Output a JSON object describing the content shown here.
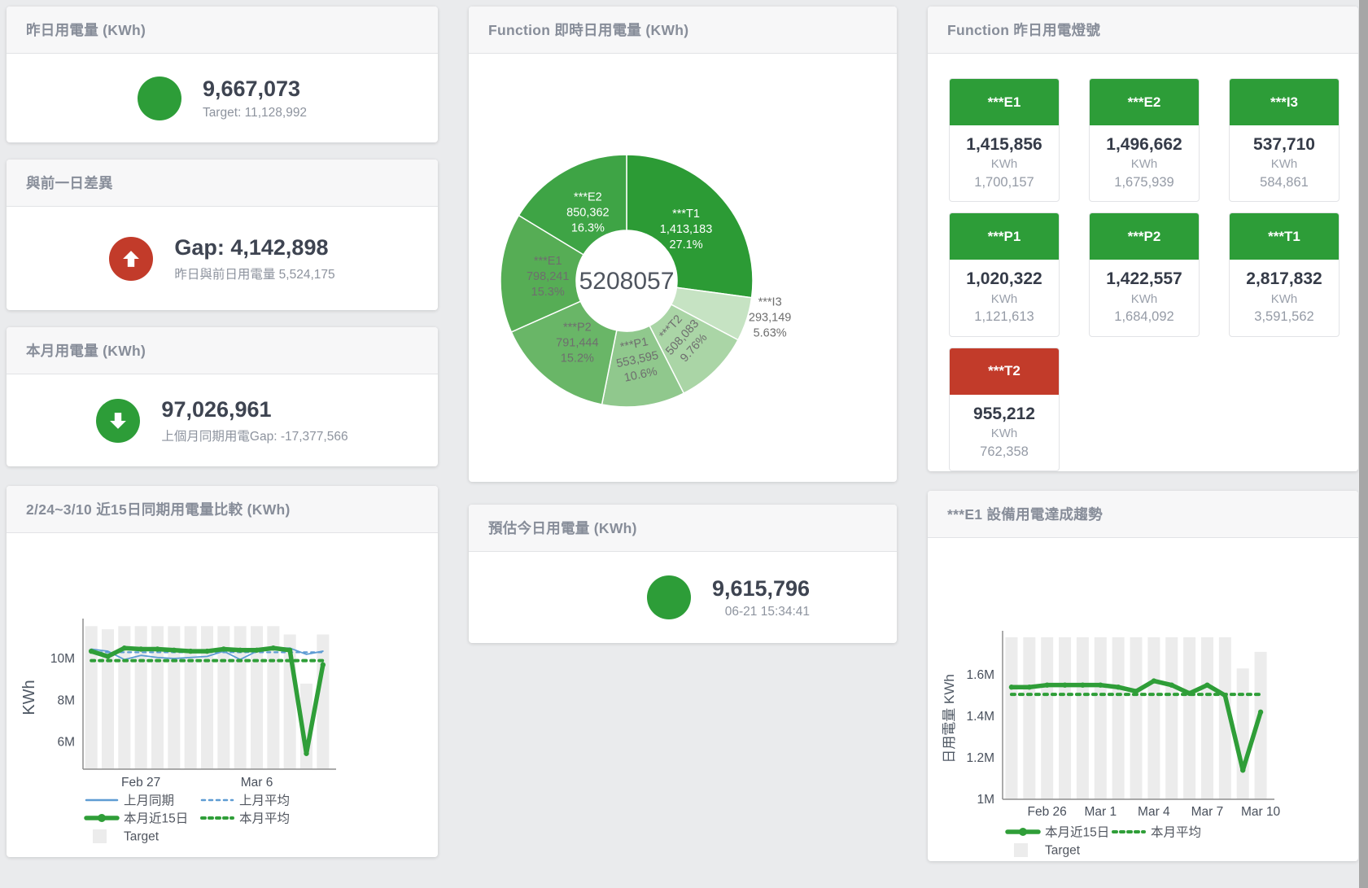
{
  "colors": {
    "page_bg": "#eaebed",
    "green": "#2d9d38",
    "red": "#c23b2a",
    "blue": "#5e9cd3",
    "target_bar": "#ececec",
    "axis": "#8e8e8e",
    "tick_text": "#49505c"
  },
  "panels": {
    "yesterday": {
      "title": "昨日用電量 (KWh)",
      "indicator": "green-circle",
      "value": "9,667,073",
      "sub": "Target: 11,128,992"
    },
    "gap_prev_day": {
      "title": "與前一日差異",
      "indicator": "red-up-arrow",
      "value": "Gap: 4,142,898",
      "sub": "昨日與前日用電量 5,524,175"
    },
    "month": {
      "title": "本月用電量 (KWh)",
      "indicator": "green-down-arrow",
      "value": "97,026,961",
      "sub": "上個月同期用電Gap: -17,377,566"
    },
    "compare15": {
      "title": "2/24~3/10 近15日同期用電量比較 (KWh)"
    },
    "donut": {
      "title": "Function 即時日用電量 (KWh)"
    },
    "today_est": {
      "title": "預估今日用電量 (KWh)",
      "indicator": "green-circle",
      "value": "9,615,796",
      "sub": "06-21 15:34:41"
    },
    "lights": {
      "title": "Function 昨日用電燈號",
      "tiles": [
        {
          "label": "***E1",
          "value": "1,415,856",
          "unit": "KWh",
          "target": "1,700,157",
          "status": "green"
        },
        {
          "label": "***E2",
          "value": "1,496,662",
          "unit": "KWh",
          "target": "1,675,939",
          "status": "green"
        },
        {
          "label": "***I3",
          "value": "537,710",
          "unit": "KWh",
          "target": "584,861",
          "status": "green"
        },
        {
          "label": "***P1",
          "value": "1,020,322",
          "unit": "KWh",
          "target": "1,121,613",
          "status": "green"
        },
        {
          "label": "***P2",
          "value": "1,422,557",
          "unit": "KWh",
          "target": "1,684,092",
          "status": "green"
        },
        {
          "label": "***T1",
          "value": "2,817,832",
          "unit": "KWh",
          "target": "3,591,562",
          "status": "green"
        },
        {
          "label": "***T2",
          "value": "955,212",
          "unit": "KWh",
          "target": "762,358",
          "status": "red"
        }
      ]
    },
    "e1_trend": {
      "title": "***E1 設備用電達成趨勢"
    }
  },
  "chart_data": [
    {
      "id": "realtime_donut",
      "type": "pie",
      "title": "Function 即時日用電量 (KWh)",
      "center_total": "5208057",
      "slices": [
        {
          "name": "***T1",
          "value": 1413183,
          "pct": "27.1%",
          "color": "#2c9b35",
          "label_color": "#ffffff"
        },
        {
          "name": "***I3",
          "value": 293149,
          "pct": "5.63%",
          "color": "#c6e3c3",
          "label_color": "#6e6e6e",
          "outside": true
        },
        {
          "name": "***T2",
          "value": 508083,
          "pct": "9.76%",
          "color": "#aad5a6",
          "label_color": "#6e6e6e",
          "rotate": -48
        },
        {
          "name": "***P1",
          "value": 553595,
          "pct": "10.6%",
          "color": "#90c88d",
          "label_color": "#6e6e6e",
          "rotate": -12
        },
        {
          "name": "***P2",
          "value": 791444,
          "pct": "15.2%",
          "color": "#69b667",
          "label_color": "#6e6e6e"
        },
        {
          "name": "***E1",
          "value": 798241,
          "pct": "15.3%",
          "color": "#56ad55",
          "label_color": "#6e6e6e"
        },
        {
          "name": "***E2",
          "value": 850362,
          "pct": "16.3%",
          "color": "#3ea445",
          "label_color": "#ffffff"
        }
      ]
    },
    {
      "id": "compare15",
      "type": "line",
      "title": "2/24~3/10 近15日同期用電量比較 (KWh)",
      "ylabel": "KWh",
      "ylim": [
        4.7,
        11.6
      ],
      "yticks": [
        {
          "v": 6,
          "label": "6M"
        },
        {
          "v": 8,
          "label": "8M"
        },
        {
          "v": 10,
          "label": "10M"
        }
      ],
      "xticks": [
        {
          "i": 3,
          "label": "Feb 27"
        },
        {
          "i": 10,
          "label": "Mar 6"
        }
      ],
      "target_bars": [
        11.55,
        11.4,
        11.55,
        11.55,
        11.55,
        11.55,
        11.55,
        11.55,
        11.55,
        11.55,
        11.55,
        11.55,
        11.15,
        8.8,
        11.15
      ],
      "series": [
        {
          "name": "上月平均",
          "style": "dashed",
          "color": "#5e9cd3",
          "values": [
            10.3,
            10.3,
            10.3,
            10.3,
            10.3,
            10.3,
            10.3,
            10.3,
            10.3,
            10.3,
            10.3,
            10.3,
            10.3,
            10.3,
            10.3
          ]
        },
        {
          "name": "上月同期",
          "style": "thin",
          "color": "#5e9cd3",
          "values": [
            10.45,
            10.35,
            9.95,
            10.15,
            10.05,
            10.0,
            10.05,
            10.1,
            10.35,
            9.95,
            10.35,
            10.5,
            10.5,
            10.2,
            10.35
          ]
        },
        {
          "name": "本月平均",
          "style": "dotted",
          "color": "#2f9e38",
          "values": [
            9.9,
            9.9,
            9.9,
            9.9,
            9.9,
            9.9,
            9.9,
            9.9,
            9.9,
            9.9,
            9.9,
            9.9,
            9.9,
            9.9,
            9.9
          ]
        },
        {
          "name": "本月近15日",
          "style": "thick",
          "color": "#2f9e38",
          "values": [
            10.35,
            10.1,
            10.5,
            10.45,
            10.45,
            10.4,
            10.35,
            10.35,
            10.45,
            10.4,
            10.4,
            10.5,
            10.4,
            5.45,
            9.7
          ]
        }
      ],
      "legend_rows": [
        [
          "上月同期",
          "上月平均"
        ],
        [
          "本月近15日",
          "本月平均"
        ],
        [
          "Target"
        ]
      ],
      "target_legend_label": "Target"
    },
    {
      "id": "e1_trend",
      "type": "line",
      "title": "***E1 設備用電達成趨勢",
      "ylabel": "日用電量 KWh",
      "ylim": [
        1.0,
        1.78
      ],
      "yticks": [
        {
          "v": 1,
          "label": "1M"
        },
        {
          "v": 1.2,
          "label": "1.2M"
        },
        {
          "v": 1.4,
          "label": "1.4M"
        },
        {
          "v": 1.6,
          "label": "1.6M"
        }
      ],
      "xticks": [
        {
          "i": 2,
          "label": "Feb 26"
        },
        {
          "i": 5,
          "label": "Mar 1"
        },
        {
          "i": 8,
          "label": "Mar 4"
        },
        {
          "i": 11,
          "label": "Mar 7"
        },
        {
          "i": 14,
          "label": "Mar 10"
        }
      ],
      "target_bars": [
        1.78,
        1.78,
        1.78,
        1.78,
        1.78,
        1.78,
        1.78,
        1.78,
        1.78,
        1.78,
        1.78,
        1.78,
        1.78,
        1.63,
        1.71
      ],
      "series": [
        {
          "name": "本月平均",
          "style": "dotted",
          "color": "#2f9e38",
          "values": [
            1.505,
            1.505,
            1.505,
            1.505,
            1.505,
            1.505,
            1.505,
            1.505,
            1.505,
            1.505,
            1.505,
            1.505,
            1.505,
            1.505,
            1.505
          ]
        },
        {
          "name": "本月近15日",
          "style": "thick",
          "color": "#2f9e38",
          "values": [
            1.54,
            1.54,
            1.55,
            1.55,
            1.55,
            1.55,
            1.54,
            1.52,
            1.57,
            1.55,
            1.51,
            1.55,
            1.5,
            1.14,
            1.42
          ]
        }
      ],
      "legend_rows": [
        [
          "本月近15日",
          "本月平均"
        ],
        [
          "Target"
        ]
      ],
      "target_legend_label": "Target"
    }
  ]
}
